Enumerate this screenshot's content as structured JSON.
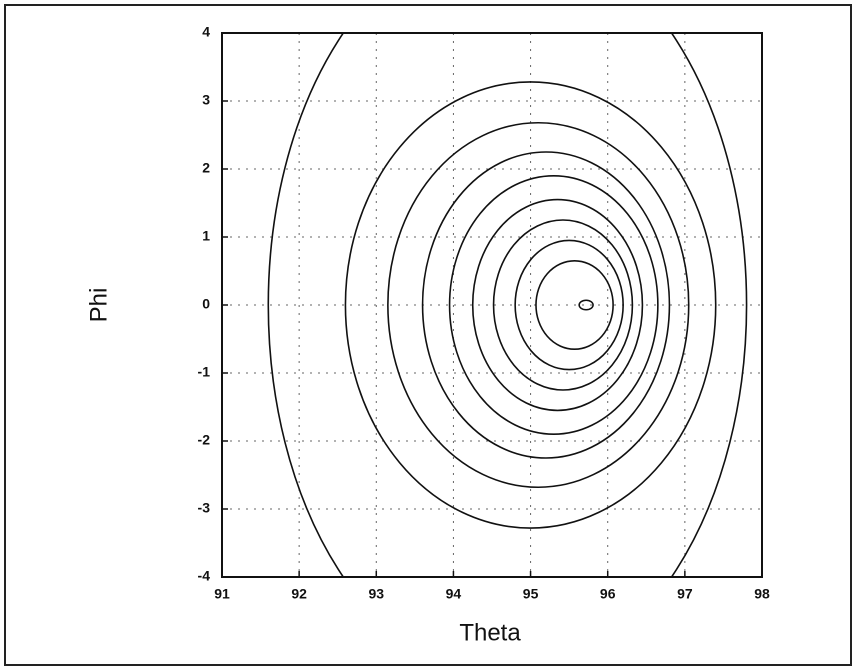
{
  "chart_data": {
    "type": "contour",
    "xlabel": "Theta",
    "ylabel": "Phi",
    "xlim": [
      91,
      98
    ],
    "xticks": [
      91,
      92,
      93,
      94,
      95,
      96,
      97,
      98
    ],
    "ylim": [
      -4,
      4
    ],
    "yticks": [
      -4,
      -3,
      -2,
      -1,
      0,
      1,
      2,
      3,
      4
    ],
    "grid": true,
    "color": "#111111",
    "contours": [
      {
        "cx": 94.7,
        "cy": 0,
        "rx": 3.1,
        "ry": 5.5
      },
      {
        "cx": 95.0,
        "cy": 0,
        "rx": 2.4,
        "ry": 3.28
      },
      {
        "cx": 95.1,
        "cy": 0,
        "rx": 1.95,
        "ry": 2.68
      },
      {
        "cx": 95.2,
        "cy": 0,
        "rx": 1.6,
        "ry": 2.25
      },
      {
        "cx": 95.3,
        "cy": 0,
        "rx": 1.35,
        "ry": 1.9
      },
      {
        "cx": 95.35,
        "cy": 0,
        "rx": 1.1,
        "ry": 1.55
      },
      {
        "cx": 95.42,
        "cy": 0,
        "rx": 0.9,
        "ry": 1.25
      },
      {
        "cx": 95.5,
        "cy": 0,
        "rx": 0.7,
        "ry": 0.95
      },
      {
        "cx": 95.57,
        "cy": 0,
        "rx": 0.5,
        "ry": 0.65
      },
      {
        "cx": 95.72,
        "cy": 0,
        "rx": 0.09,
        "ry": 0.07
      }
    ]
  }
}
